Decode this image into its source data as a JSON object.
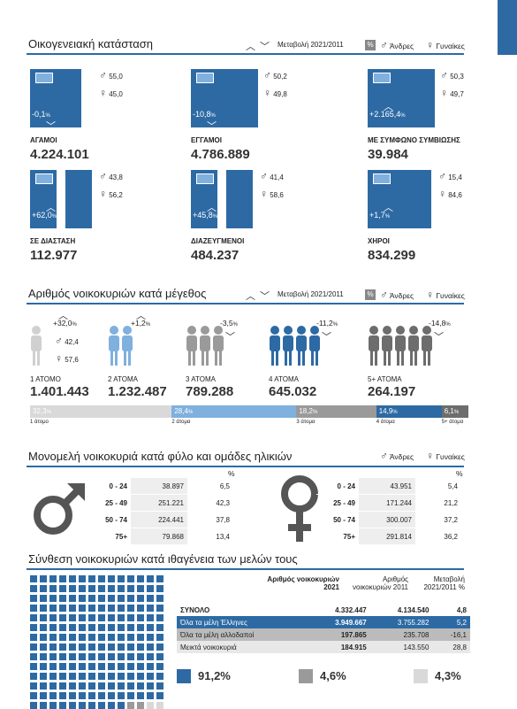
{
  "legend": {
    "men": "Άνδρες",
    "women": "Γυναίκες",
    "pct_symbol": "%"
  },
  "sections": {
    "marital": {
      "title": "Οικογενειακή κατάσταση",
      "change_label": "Μεταβολή 2021/2011"
    },
    "size": {
      "title": "Αριθμός νοικοκυριών κατά μέγεθος",
      "change_label": "Μεταβολή 2021/2011"
    },
    "single": {
      "title": "Μονομελή νοικοκυριά κατά φύλο και ομάδες ηλικιών"
    },
    "composition": {
      "title": "Σύνθεση νοικοκυριών κατά ιθαγένεια των μελών τους"
    }
  },
  "marital": [
    {
      "label": "ΑΓΑΜΟΙ",
      "value": "4.224.101",
      "change": "-0,1",
      "change_pct": "%",
      "men": "55,0",
      "women": "45,0"
    },
    {
      "label": "ΕΓΓΑΜΟΙ",
      "value": "4.786.889",
      "change": "-10,8",
      "change_pct": "%",
      "men": "50,2",
      "women": "49,8"
    },
    {
      "label": "ΜΕ ΣΥΜΦΩΝΟ ΣΥΜΒΙΩΣΗΣ",
      "value": "39.984",
      "change": "+2.165,4",
      "change_pct": "%",
      "men": "50,3",
      "women": "49,7"
    },
    {
      "label": "ΣΕ ΔΙΑΣΤΑΣΗ",
      "value": "112.977",
      "change": "+62,0",
      "change_pct": "%",
      "men": "43,8",
      "women": "56,2"
    },
    {
      "label": "ΔΙΑΖΕΥΓΜΕΝΟΙ",
      "value": "484.237",
      "change": "+45,8",
      "change_pct": "%",
      "men": "41,4",
      "women": "58,6"
    },
    {
      "label": "ΧΗΡΟΙ",
      "value": "834.299",
      "change": "+1,7",
      "change_pct": "%",
      "men": "15,4",
      "women": "84,6"
    }
  ],
  "sizes": [
    {
      "label": "1 ΑΤΟΜΟ",
      "value": "1.401.443",
      "change": "+32,0",
      "change_pct": "%",
      "men": "42,4",
      "women": "57,6"
    },
    {
      "label": "2 ΑΤΟΜΑ",
      "value": "1.232.487",
      "change": "+1,2",
      "change_pct": "%"
    },
    {
      "label": "3 ΑΤΟΜΑ",
      "value": "789.288",
      "change": "-3,5",
      "change_pct": "%"
    },
    {
      "label": "4 ΑΤΟΜΑ",
      "value": "645.032",
      "change": "-11,2",
      "change_pct": "%"
    },
    {
      "label": "5+ ΑΤΟΜΑ",
      "value": "264.197",
      "change": "-14,8",
      "change_pct": "%"
    }
  ],
  "size_bar": [
    {
      "pct": "32,3",
      "unit": "%",
      "label": "1 άτομο",
      "color": "#d9d9d9",
      "share": 32.3
    },
    {
      "pct": "28,4",
      "unit": "%",
      "label": "2 άτομα",
      "color": "#7fb0de",
      "share": 28.4
    },
    {
      "pct": "18,2",
      "unit": "%",
      "label": "3 άτομα",
      "color": "#9a9a9a",
      "share": 18.2
    },
    {
      "pct": "14,9",
      "unit": "%",
      "label": "4 άτομα",
      "color": "#2d6aa4",
      "share": 14.9
    },
    {
      "pct": "6,1",
      "unit": "%",
      "label": "5+ άτομα",
      "color": "#6d6d6d",
      "share": 6.1
    }
  ],
  "single": {
    "pct_header": "%",
    "men": [
      {
        "age": "0 - 24",
        "count": "38.897",
        "pct": "6,5"
      },
      {
        "age": "25 - 49",
        "count": "251.221",
        "pct": "42,3"
      },
      {
        "age": "50 - 74",
        "count": "224.441",
        "pct": "37,8"
      },
      {
        "age": "75+",
        "count": "79.868",
        "pct": "13,4"
      }
    ],
    "women": [
      {
        "age": "0 - 24",
        "count": "43.951",
        "pct": "5,4"
      },
      {
        "age": "25 - 49",
        "count": "171.244",
        "pct": "21,2"
      },
      {
        "age": "50 - 74",
        "count": "300.007",
        "pct": "37,2"
      },
      {
        "age": "75+",
        "count": "291.814",
        "pct": "36,2"
      }
    ]
  },
  "composition": {
    "headers": {
      "h2021": "Αριθμός νοικοκυριών 2021",
      "h2011": "Αριθμός νοικοκυριών 2011",
      "hchange": "Μεταβολή 2021/2011 %"
    },
    "rows": [
      {
        "label": "ΣΥΝΟΛΟ",
        "v2021": "4.332.447",
        "v2011": "4.134.540",
        "change": "4,8"
      },
      {
        "label": "Όλα τα μέλη Έλληνες",
        "v2021": "3.949.667",
        "v2011": "3.755.282",
        "change": "5,2"
      },
      {
        "label": "Όλα τα μέλη αλλοδαποί",
        "v2021": "197.865",
        "v2011": "235.708",
        "change": "-16,1"
      },
      {
        "label": "Μεικτά νοικοκυριά",
        "v2021": "184.915",
        "v2011": "143.550",
        "change": "28,8"
      }
    ],
    "totals": [
      {
        "pct": "91,2%",
        "color": "#2d6aa4"
      },
      {
        "pct": "4,6%",
        "color": "#9a9a9a"
      },
      {
        "pct": "4,3%",
        "color": "#d9d9d9"
      }
    ]
  }
}
